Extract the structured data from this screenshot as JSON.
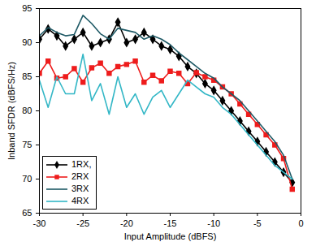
{
  "chart_data": {
    "type": "line",
    "xlabel": "Input Amplitude (dBFS)",
    "ylabel": "Inband SFDR (dBFS/Hz)",
    "x": [
      -30,
      -29,
      -28,
      -27,
      -26,
      -25,
      -24,
      -23,
      -22,
      -21,
      -20,
      -19,
      -18,
      -17,
      -16,
      -15,
      -14,
      -13,
      -12,
      -11,
      -10,
      -9,
      -8,
      -7,
      -6,
      -5,
      -4,
      -3,
      -2,
      -1
    ],
    "series": [
      {
        "name": "1RX,",
        "color": "#000000",
        "marker": "diamond",
        "line_style": "solid",
        "values": [
          90.5,
          92,
          91,
          89.5,
          90.5,
          91.5,
          89.5,
          90,
          90.5,
          93,
          90,
          90.5,
          91.5,
          90.5,
          89.5,
          89,
          88,
          86.5,
          85.5,
          84,
          83,
          81.5,
          80,
          78.5,
          77,
          75.5,
          74,
          72.5,
          71,
          69.5
        ]
      },
      {
        "name": "2RX",
        "color": "#ee1c1c",
        "marker": "square",
        "line_style": "solid",
        "values": [
          85.5,
          87.3,
          84.8,
          85,
          86.2,
          84.2,
          86.3,
          87,
          85.5,
          86.5,
          86.8,
          87.3,
          84.2,
          85.2,
          84.4,
          85.8,
          85.5,
          84,
          85.6,
          85,
          84.5,
          83.5,
          82.5,
          81,
          79.5,
          78,
          76.5,
          75,
          73,
          68.5
        ]
      },
      {
        "name": "3RX",
        "color": "#1f5a66",
        "marker": "none",
        "line_style": "solid",
        "values": [
          91,
          92.2,
          91.5,
          91,
          91.2,
          94,
          92.8,
          91.3,
          90.5,
          92.1,
          91.8,
          91.5,
          90.5,
          91,
          90.5,
          89.7,
          88.5,
          87.5,
          86.5,
          85.5,
          84.8,
          83.5,
          82.5,
          81.5,
          80,
          78.5,
          77,
          75.5,
          73.5,
          70
        ]
      },
      {
        "name": "4RX",
        "color": "#33b7c6",
        "marker": "none",
        "line_style": "solid",
        "values": [
          84.5,
          80.5,
          85,
          82.5,
          82.5,
          88.3,
          81.5,
          84,
          79.5,
          85,
          80.5,
          82.5,
          79.5,
          82,
          83,
          80.5,
          82.5,
          84.5,
          83.5,
          82.5,
          82,
          80.5,
          79.5,
          78,
          76.5,
          75,
          73.5,
          72,
          71,
          70
        ]
      }
    ],
    "xlim": [
      -30,
      0
    ],
    "ylim": [
      65,
      95
    ],
    "xticks": [
      -30,
      -25,
      -20,
      -15,
      -10,
      -5,
      0
    ],
    "yticks": [
      65,
      70,
      75,
      80,
      85,
      90,
      95
    ],
    "grid": false,
    "legend": "lower left"
  }
}
